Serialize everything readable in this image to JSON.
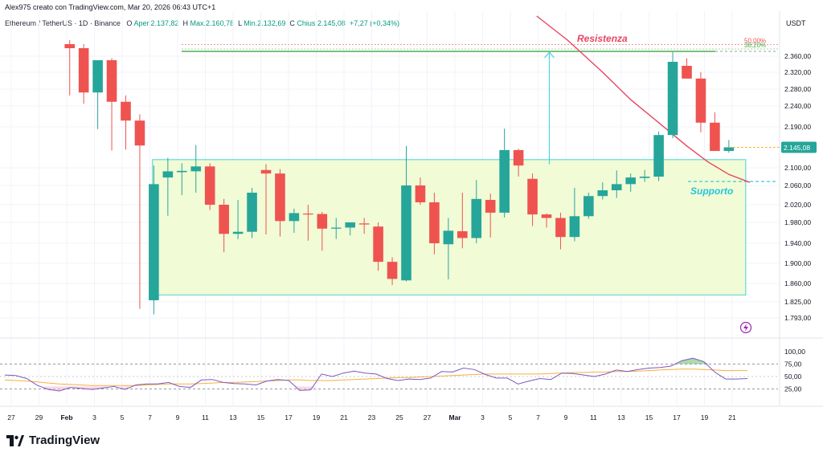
{
  "header": {
    "author_line": "Alex975 creato con TradingView.com, Mar 20, 2026 06:43 UTC+1",
    "symbol": "Ethereum / TetherUS · 1D · Binance",
    "open_label": "O",
    "open_text": "Aper.2.137,82",
    "high_label": "H",
    "high_text": "Max.2.160,78",
    "low_label": "L",
    "low_text": "Min.2.132,69",
    "close_label": "C",
    "close_text": "Chius.2.145,08",
    "change_text": "+7,27 (+0,34%)",
    "currency": "USDT"
  },
  "footer": {
    "brand": "TradingView"
  },
  "chart_data": {
    "type": "candlestick",
    "price_axis_labels": [
      "2.360,00",
      "2.320,00",
      "2.280,00",
      "2.240,00",
      "2.190,00",
      "2.145,08",
      "2.100,00",
      "2.060,00",
      "2.020,00",
      "1.980,00",
      "1.940,00",
      "1.900,00",
      "1.860,00",
      "1.825,00",
      "1.793,00"
    ],
    "last_price_label": "2.145,08",
    "date_labels": [
      "27",
      "29",
      "Feb",
      "3",
      "5",
      "7",
      "9",
      "11",
      "13",
      "15",
      "17",
      "19",
      "21",
      "23",
      "25",
      "27",
      "Mar",
      "3",
      "5",
      "7",
      "9",
      "11",
      "13",
      "15",
      "17",
      "19",
      "21"
    ],
    "candles": [
      {
        "o": 2390,
        "h": 2400,
        "l": 2265,
        "c": 2380
      },
      {
        "o": 2380,
        "h": 2390,
        "l": 2245,
        "c": 2272
      },
      {
        "o": 2272,
        "h": 2350,
        "l": 2185,
        "c": 2350
      },
      {
        "o": 2350,
        "h": 2355,
        "l": 2138,
        "c": 2250
      },
      {
        "o": 2250,
        "h": 2265,
        "l": 2140,
        "c": 2205
      },
      {
        "o": 2205,
        "h": 2220,
        "l": 1811,
        "c": 2149
      },
      {
        "o": 1828,
        "h": 2105,
        "l": 1800,
        "c": 2063
      },
      {
        "o": 2078,
        "h": 2122,
        "l": 1995,
        "c": 2092
      },
      {
        "o": 2090,
        "h": 2110,
        "l": 2040,
        "c": 2093
      },
      {
        "o": 2092,
        "h": 2150,
        "l": 2045,
        "c": 2103
      },
      {
        "o": 2103,
        "h": 2110,
        "l": 2008,
        "c": 2020
      },
      {
        "o": 2020,
        "h": 2032,
        "l": 1922,
        "c": 1958
      },
      {
        "o": 1958,
        "h": 2030,
        "l": 1948,
        "c": 1962
      },
      {
        "o": 1962,
        "h": 2055,
        "l": 1950,
        "c": 2045
      },
      {
        "o": 2095,
        "h": 2108,
        "l": 1957,
        "c": 2087
      },
      {
        "o": 2087,
        "h": 2097,
        "l": 1953,
        "c": 1983
      },
      {
        "o": 1983,
        "h": 2011,
        "l": 1960,
        "c": 2001
      },
      {
        "o": 2000,
        "h": 2020,
        "l": 1945,
        "c": 1999
      },
      {
        "o": 1999,
        "h": 2004,
        "l": 1925,
        "c": 1968
      },
      {
        "o": 1968,
        "h": 1990,
        "l": 1948,
        "c": 1970
      },
      {
        "o": 1970,
        "h": 1980,
        "l": 1955,
        "c": 1980
      },
      {
        "o": 1978,
        "h": 1990,
        "l": 1958,
        "c": 1976
      },
      {
        "o": 1972,
        "h": 1980,
        "l": 1885,
        "c": 1903
      },
      {
        "o": 1903,
        "h": 1912,
        "l": 1857,
        "c": 1869
      },
      {
        "o": 1866,
        "h": 2148,
        "l": 1864,
        "c": 2060
      },
      {
        "o": 2060,
        "h": 2078,
        "l": 2020,
        "c": 2025
      },
      {
        "o": 2025,
        "h": 2045,
        "l": 1918,
        "c": 1940
      },
      {
        "o": 1938,
        "h": 1990,
        "l": 1868,
        "c": 1964
      },
      {
        "o": 1963,
        "h": 2045,
        "l": 1930,
        "c": 1950
      },
      {
        "o": 1950,
        "h": 2072,
        "l": 1940,
        "c": 2032
      },
      {
        "o": 2030,
        "h": 2043,
        "l": 1951,
        "c": 2002
      },
      {
        "o": 2002,
        "h": 2186,
        "l": 1991,
        "c": 2139
      },
      {
        "o": 2139,
        "h": 2142,
        "l": 2080,
        "c": 2105
      },
      {
        "o": 2075,
        "h": 2087,
        "l": 1973,
        "c": 1998
      },
      {
        "o": 1998,
        "h": 2000,
        "l": 1970,
        "c": 1990
      },
      {
        "o": 1990,
        "h": 2002,
        "l": 1928,
        "c": 1952
      },
      {
        "o": 1952,
        "h": 2055,
        "l": 1944,
        "c": 1994
      },
      {
        "o": 1994,
        "h": 2045,
        "l": 1988,
        "c": 2038
      },
      {
        "o": 2038,
        "h": 2067,
        "l": 2031,
        "c": 2050
      },
      {
        "o": 2050,
        "h": 2094,
        "l": 2034,
        "c": 2063
      },
      {
        "o": 2063,
        "h": 2087,
        "l": 2047,
        "c": 2078
      },
      {
        "o": 2077,
        "h": 2095,
        "l": 2068,
        "c": 2080
      },
      {
        "o": 2080,
        "h": 2180,
        "l": 2070,
        "c": 2172
      },
      {
        "o": 2172,
        "h": 2370,
        "l": 2165,
        "c": 2346
      },
      {
        "o": 2336,
        "h": 2355,
        "l": 2305,
        "c": 2305
      },
      {
        "o": 2305,
        "h": 2320,
        "l": 2178,
        "c": 2200
      },
      {
        "o": 2200,
        "h": 2225,
        "l": 2142,
        "c": 2137
      },
      {
        "o": 2137,
        "h": 2161,
        "l": 2133,
        "c": 2145
      }
    ],
    "ma_line": [
      {
        "i": 33.3,
        "v": 2460
      },
      {
        "i": 35.5,
        "v": 2400
      },
      {
        "i": 38,
        "v": 2320
      },
      {
        "i": 40,
        "v": 2255
      },
      {
        "i": 42,
        "v": 2200
      },
      {
        "i": 44,
        "v": 2148
      },
      {
        "i": 45.5,
        "v": 2113
      },
      {
        "i": 47,
        "v": 2085
      },
      {
        "i": 48.5,
        "v": 2067
      }
    ],
    "support_zone": {
      "top": 2118,
      "bottom": 1838,
      "from_index": 5.9,
      "to_index": 48.2
    },
    "resistance_level": 2372,
    "support_level": 2069,
    "fib_levels": [
      {
        "label": "50,00%",
        "value": 2389
      },
      {
        "label": "38,20%",
        "value": 2378
      }
    ],
    "annotations": {
      "resistance": "Resistenza",
      "support": "Supporto"
    },
    "arrow": {
      "index": 34.2,
      "from": 2108,
      "to": 2370
    },
    "rsi": {
      "axis_labels": [
        "100,00",
        "75,00",
        "50,00",
        "25,00"
      ],
      "rsi_values": [
        53,
        52,
        46,
        32,
        24,
        21,
        28,
        26,
        24,
        27,
        30,
        24,
        33,
        35,
        35,
        38,
        30,
        28,
        43,
        44,
        38,
        36,
        35,
        33,
        41,
        44,
        42,
        22,
        23,
        55,
        50,
        57,
        61,
        57,
        55,
        46,
        42,
        45,
        44,
        47,
        60,
        59,
        67,
        64,
        54,
        47,
        47,
        35,
        41,
        46,
        44,
        57,
        56,
        53,
        50,
        55,
        63,
        60,
        64,
        67,
        68,
        71,
        82,
        87,
        80,
        59,
        45,
        45,
        46
      ],
      "ma_values": [
        43,
        42,
        41,
        39,
        37,
        35,
        34,
        33,
        32,
        32,
        32,
        32,
        32,
        33,
        34,
        35,
        35,
        35,
        36,
        37,
        38,
        38,
        39,
        40,
        41,
        42,
        43,
        43,
        42,
        42,
        42,
        43,
        44,
        45,
        46,
        47,
        48,
        48,
        49,
        50,
        51,
        52,
        53,
        54,
        55,
        55,
        55,
        55,
        55,
        55,
        56,
        57,
        58,
        58,
        59,
        59,
        60,
        60,
        61,
        62,
        63,
        64,
        65,
        65,
        64,
        63,
        62,
        62,
        62
      ]
    }
  },
  "colors": {
    "up": "#26a69a",
    "down": "#ef5350",
    "ma": "#e94560",
    "zone_fill": "#f1fbd6",
    "zone_border": "#7fe0d8",
    "resistance": "#4caf50",
    "support": "#26c6da",
    "rsi_line": "#7e57c2",
    "rsi_ma": "#f5b042"
  }
}
